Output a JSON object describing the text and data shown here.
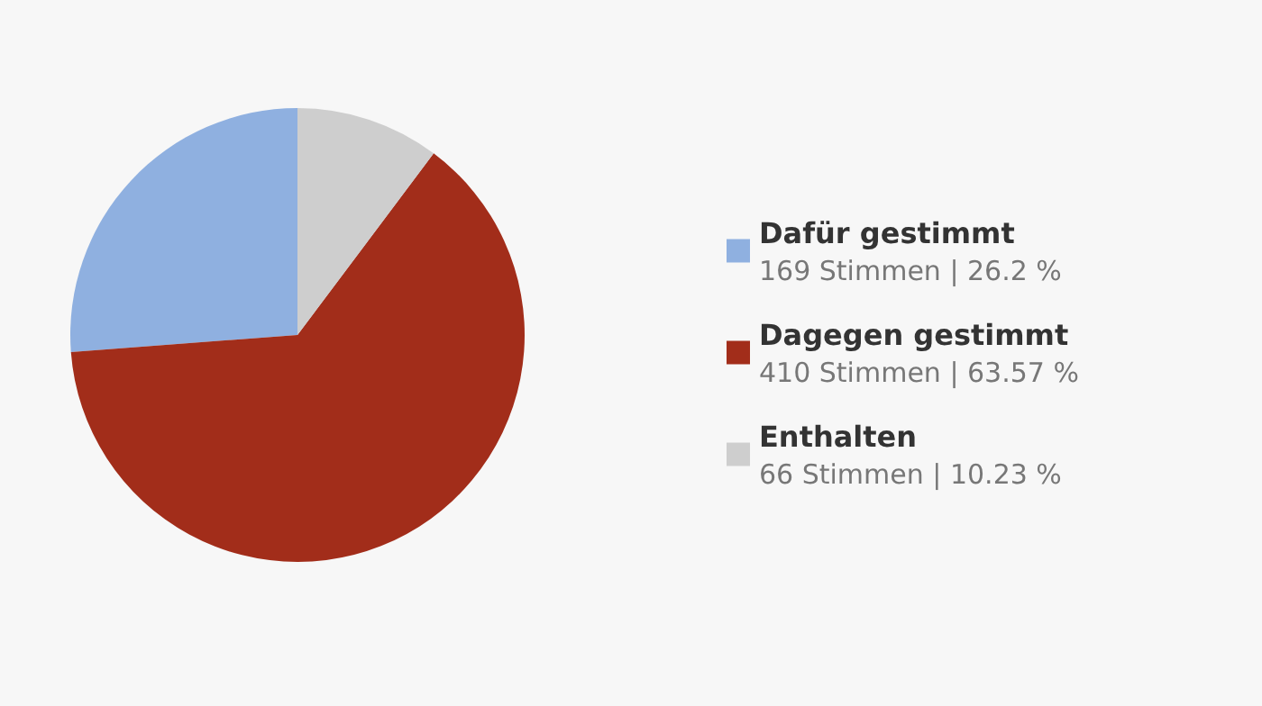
{
  "chart_data": {
    "type": "pie",
    "categories": [
      "Dafür gestimmt",
      "Dagegen gestimmt",
      "Enthalten"
    ],
    "values": [
      169,
      410,
      66
    ],
    "value_labels": [
      "169 Stimmen | 26.2 %",
      "410 Stimmen | 63.57 %",
      "66 Stimmen | 10.23 %"
    ],
    "colors": [
      "#8fb0e0",
      "#a22d1a",
      "#cecece"
    ],
    "legend": "right"
  }
}
